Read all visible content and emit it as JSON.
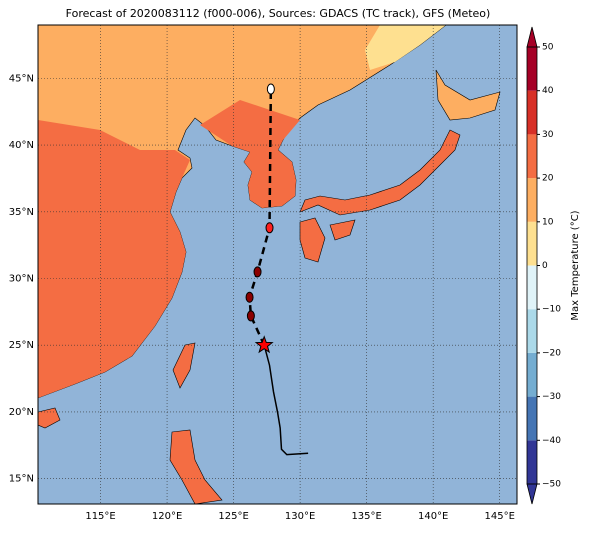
{
  "chart_data": {
    "type": "map",
    "title": "Forecast of 2020083112 (f000-006), Sources: GDACS (TC track), GFS (Meteo)",
    "xlim": [
      110.3,
      146.3
    ],
    "ylim": [
      13.1,
      49
    ],
    "xticks": [
      {
        "value": 115,
        "label": "115°E"
      },
      {
        "value": 120,
        "label": "120°E"
      },
      {
        "value": 125,
        "label": "125°E"
      },
      {
        "value": 130,
        "label": "130°E"
      },
      {
        "value": 135,
        "label": "135°E"
      },
      {
        "value": 140,
        "label": "140°E"
      },
      {
        "value": 145,
        "label": "145°E"
      }
    ],
    "yticks": [
      {
        "value": 15,
        "label": "15°N"
      },
      {
        "value": 20,
        "label": "20°N"
      },
      {
        "value": 25,
        "label": "25°N"
      },
      {
        "value": 30,
        "label": "30°N"
      },
      {
        "value": 35,
        "label": "35°N"
      },
      {
        "value": 40,
        "label": "40°N"
      },
      {
        "value": 45,
        "label": "45°N"
      }
    ],
    "grid": true,
    "past_track": {
      "color": "#000000",
      "lon": [
        127.3,
        127.7,
        128.0,
        128.3,
        128.5,
        128.6,
        129.0,
        130.6
      ],
      "lat": [
        25.0,
        23.5,
        21.5,
        20.0,
        18.8,
        17.2,
        16.8,
        16.9
      ]
    },
    "forecast_track": {
      "lon": [
        127.3,
        126.3,
        126.2,
        126.8,
        127.7,
        127.8
      ],
      "lat": [
        25.0,
        27.2,
        28.6,
        30.5,
        33.8,
        44.2
      ],
      "markers": [
        "star",
        "circle",
        "circle",
        "circle",
        "circle",
        "circle"
      ],
      "colors": [
        "#ff0000",
        "#8b0000",
        "#8b0000",
        "#8b0000",
        "#ff2020",
        "#ffffff"
      ]
    },
    "colorbar": {
      "label": "Max Temperature (°C)",
      "ticks": [
        {
          "value": -50,
          "label": "−50"
        },
        {
          "value": -40,
          "label": "−40"
        },
        {
          "value": -30,
          "label": "−30"
        },
        {
          "value": -20,
          "label": "−20"
        },
        {
          "value": -10,
          "label": "−10"
        },
        0,
        10,
        20,
        30,
        40,
        50
      ],
      "colors": [
        "#313695",
        "#4575b4",
        "#74add1",
        "#abd9e9",
        "#e0f3f8",
        "#fee090",
        "#fdae61",
        "#f46d43",
        "#d73027",
        "#a50026"
      ]
    }
  }
}
